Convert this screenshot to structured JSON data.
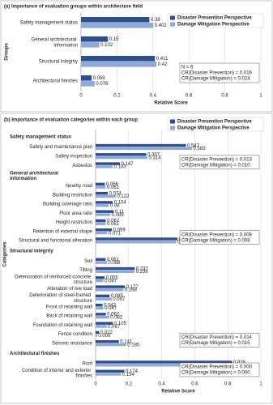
{
  "chart_data": [
    {
      "type": "bar",
      "orientation": "horizontal",
      "title": "(a) Importance of evaluation groups within architecture field",
      "xlabel": "Relative Score",
      "ylabel": "Groups",
      "categories": [
        "Safety management status",
        "General architectural information",
        "Structural integrity",
        "Architectural finishes"
      ],
      "series": [
        {
          "name": "Disaster Prevention Perspective",
          "color": "#2f4e8c",
          "values": [
            0.38,
            0.15,
            0.411,
            0.059
          ]
        },
        {
          "name": "Damage Mitigation Perspective",
          "color": "#8eaadb",
          "values": [
            0.402,
            0.102,
            0.42,
            0.076
          ]
        }
      ],
      "xlim": [
        0,
        1
      ],
      "xticks": [
        0,
        0.2,
        0.4,
        0.6,
        0.8,
        1
      ],
      "grid": true,
      "legend": "upper right",
      "annotation": [
        "N = 6",
        "CR(Disaster Prevention) = 0.016",
        "CR(Damage Mitigation) = 0.024"
      ]
    },
    {
      "type": "grouped-bar",
      "orientation": "horizontal",
      "title": "(b) Importance of evaluation categories within each group",
      "xlabel": "Relative Score",
      "ylabel": "Categories",
      "series": [
        {
          "name": "Disaster Prevention Perspective",
          "color": "#2f4e8c"
        },
        {
          "name": "Damage Mitigation Perspective",
          "color": "#8eaadb"
        }
      ],
      "xlim": [
        0,
        1
      ],
      "xticks": [
        0,
        0.2,
        0.4,
        0.6,
        0.8,
        1
      ],
      "grid": true,
      "legend": "upper right",
      "groups": [
        {
          "name": "Safety management status",
          "categories": [
            "Safety and maintenance plan",
            "Safety inspection",
            "Asbestos"
          ],
          "values": [
            [
              0.547,
              0.307,
              0.147
            ],
            [
              0.583,
              0.314,
              0.103
            ]
          ],
          "annotation": [
            "CR(Disaster Prevention) = 0.013",
            "CR(Damage Mitigation) = 0.010"
          ]
        },
        {
          "name": "General architectural information",
          "categories": [
            "Nearby road",
            "Building restriction",
            "Building coverage ratio",
            "Floor area ratio",
            "Height restriction",
            "Retention of external shape",
            "Structural and functional alteration"
          ],
          "values": [
            [
              0.056,
              0.074,
              0.104,
              0.11,
              0.062,
              0.099,
              0.496
            ],
            [
              0.061,
              0.122,
              0.08,
              0.089,
              0.061,
              0.071,
              0.487
            ]
          ],
          "annotation": [
            "CR(Disaster Prevention) = 0.008",
            "CR(Damage Mitigation) = 0.008"
          ]
        },
        {
          "name": "Structural integrity",
          "categories": [
            "Soil",
            "Tilting",
            "Deterioration of reinforced concrete structure",
            "Alteration of live load",
            "Deterioration of steel-framed structure",
            "Front of retaining wall",
            "Back of retaining wall",
            "Foundation of retaining wall",
            "Fence condition",
            "Seismic resistance"
          ],
          "values": [
            [
              0.061,
              0.237,
              0.055,
              0.177,
              0.085,
              0.042,
              0.062,
              0.105,
              0.022,
              0.141
            ],
            [
              0.068,
              0.236,
              0.047,
              0.168,
              0.097,
              0.047,
              0.082,
              0.067,
              0.009,
              0.185
            ]
          ],
          "annotation": [
            "CR(Disaster Prevention) = 0.014",
            "CR(Damage Mitigation) = 0.015"
          ]
        },
        {
          "name": "Architectural finishes",
          "categories": [
            "Roof",
            "Condition of interior and exterior finishes"
          ],
          "values": [
            [
              0.826,
              0.174
            ],
            [
              0.846,
              0.154
            ]
          ],
          "annotation": [
            "CR(Disaster Prevention) = 0.000",
            "CR(Damage Mitigation) = 0.000"
          ]
        }
      ]
    }
  ]
}
